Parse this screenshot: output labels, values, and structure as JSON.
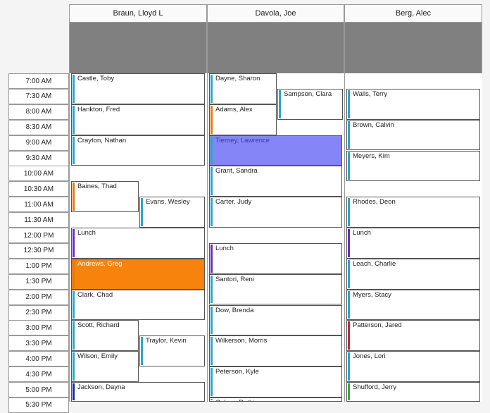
{
  "providers": [
    {
      "name": "Braun, Lloyd L"
    },
    {
      "name": "Davola, Joe"
    },
    {
      "name": "Berg, Alec"
    }
  ],
  "time_slots": [
    "7:00 AM",
    "7:30 AM",
    "8:00 AM",
    "8:30 AM",
    "9:00 AM",
    "9:30 AM",
    "10:00 AM",
    "10:30 AM",
    "11:00 AM",
    "11:30 AM",
    "12:00 PM",
    "12:30 PM",
    "1:00 PM",
    "1:30 PM",
    "2:00 PM",
    "2:30 PM",
    "3:00 PM",
    "3:30 PM",
    "4:00 PM",
    "4:30 PM",
    "5:00 PM",
    "5:30 PM"
  ],
  "appointments": [
    {
      "col": 0,
      "label": "Castle, Toby",
      "start": 0,
      "dur": 2,
      "sub": "full",
      "bar": "#2ba6c9"
    },
    {
      "col": 0,
      "label": "Hankton, Fred",
      "start": 2,
      "dur": 2,
      "sub": "full",
      "bar": "#2ba6c9"
    },
    {
      "col": 0,
      "label": "Crayton, Nathan",
      "start": 4,
      "dur": 2,
      "sub": "full",
      "bar": "#2ba6c9"
    },
    {
      "col": 0,
      "label": "Baines, Thad",
      "start": 7,
      "dur": 2,
      "sub": "left",
      "bar": "#e6780f"
    },
    {
      "col": 0,
      "label": "Evans, Wesley",
      "start": 8,
      "dur": 2,
      "sub": "right",
      "bar": "#2ba6c9"
    },
    {
      "col": 0,
      "label": "Lunch",
      "start": 10,
      "dur": 2,
      "sub": "full",
      "bar": "#6a2cc2"
    },
    {
      "col": 0,
      "label": "Andrews, Greg",
      "start": 12,
      "dur": 2,
      "sub": "full",
      "bar": "#e6780f",
      "fill": "#f7830c",
      "text": "#ffffff"
    },
    {
      "col": 0,
      "label": "Clark, Chad",
      "start": 14,
      "dur": 2,
      "sub": "full",
      "bar": "#2ba6c9"
    },
    {
      "col": 0,
      "label": "Scott, Richard",
      "start": 16,
      "dur": 2,
      "sub": "left",
      "bar": "#2ba6c9"
    },
    {
      "col": 0,
      "label": "Traylor, Kevin",
      "start": 17,
      "dur": 2,
      "sub": "right",
      "bar": "#2ba6c9"
    },
    {
      "col": 0,
      "label": "Wilson, Emily",
      "start": 18,
      "dur": 2,
      "sub": "left",
      "bar": "#2ba6c9"
    },
    {
      "col": 0,
      "label": "Jackson, Dayna",
      "start": 20,
      "dur": 2,
      "sub": "full",
      "bar": "#1a2a9c"
    },
    {
      "col": 1,
      "label": "Dayne, Sharon",
      "start": 0,
      "dur": 2,
      "sub": "left",
      "bar": "#2ba6c9"
    },
    {
      "col": 1,
      "label": "Sampson, Clara",
      "start": 1,
      "dur": 2,
      "sub": "right",
      "bar": "#2ba6c9"
    },
    {
      "col": 1,
      "label": "Adams, Alex",
      "start": 2,
      "dur": 2,
      "sub": "left",
      "bar": "#e6780f"
    },
    {
      "col": 1,
      "label": "Tierney, Lawrence",
      "start": 4,
      "dur": 2,
      "sub": "full",
      "bar": "#2ba6c9",
      "fill": "#8585f7",
      "text": "#3a3aa0"
    },
    {
      "col": 1,
      "label": "Grant, Sandra",
      "start": 6,
      "dur": 2,
      "sub": "full",
      "bar": "#2ba6c9"
    },
    {
      "col": 1,
      "label": "Carter, Judy",
      "start": 8,
      "dur": 2,
      "sub": "full",
      "bar": "#2ba6c9"
    },
    {
      "col": 1,
      "label": "Lunch",
      "start": 11,
      "dur": 2,
      "sub": "full",
      "bar": "#6a2cc2"
    },
    {
      "col": 1,
      "label": "Santori, Reni",
      "start": 13,
      "dur": 2,
      "sub": "full",
      "bar": "#2ba6c9"
    },
    {
      "col": 1,
      "label": "Dow, Brenda",
      "start": 15,
      "dur": 2,
      "sub": "full",
      "bar": "#2ba6c9"
    },
    {
      "col": 1,
      "label": "Wilkerson, Morris",
      "start": 17,
      "dur": 2,
      "sub": "full",
      "bar": "#2ba6c9"
    },
    {
      "col": 1,
      "label": "Peterson, Kyle",
      "start": 19,
      "dur": 2,
      "sub": "full",
      "bar": "#2ba6c9"
    },
    {
      "col": 1,
      "label": "Cohen, Ruthie",
      "start": 21,
      "dur": 2,
      "sub": "full",
      "bar": "#2ba6c9"
    },
    {
      "col": 2,
      "label": "Walls, Terry",
      "start": 1,
      "dur": 2,
      "sub": "full",
      "bar": "#2ba6c9"
    },
    {
      "col": 2,
      "label": "Brown, Calvin",
      "start": 3,
      "dur": 2,
      "sub": "full",
      "bar": "#2ba6c9"
    },
    {
      "col": 2,
      "label": "Meyers, Kim",
      "start": 5,
      "dur": 2,
      "sub": "full",
      "bar": "#2ba6c9"
    },
    {
      "col": 2,
      "label": "Rhodes, Deon",
      "start": 8,
      "dur": 2,
      "sub": "full",
      "bar": "#2ba6c9"
    },
    {
      "col": 2,
      "label": "Lunch",
      "start": 10,
      "dur": 2,
      "sub": "full",
      "bar": "#6a2cc2"
    },
    {
      "col": 2,
      "label": "Leach, Charlie",
      "start": 12,
      "dur": 2,
      "sub": "full",
      "bar": "#2ba6c9"
    },
    {
      "col": 2,
      "label": "Myers, Stacy",
      "start": 14,
      "dur": 2,
      "sub": "full",
      "bar": "#2ba6c9"
    },
    {
      "col": 2,
      "label": "Patterson, Jared",
      "start": 16,
      "dur": 2,
      "sub": "full",
      "bar": "#c0283a"
    },
    {
      "col": 2,
      "label": "Jones, Lori",
      "start": 18,
      "dur": 2,
      "sub": "full",
      "bar": "#2ba6c9"
    },
    {
      "col": 2,
      "label": "Shufford, Jerry",
      "start": 20,
      "dur": 2,
      "sub": "full",
      "bar": "#3aa845"
    }
  ]
}
